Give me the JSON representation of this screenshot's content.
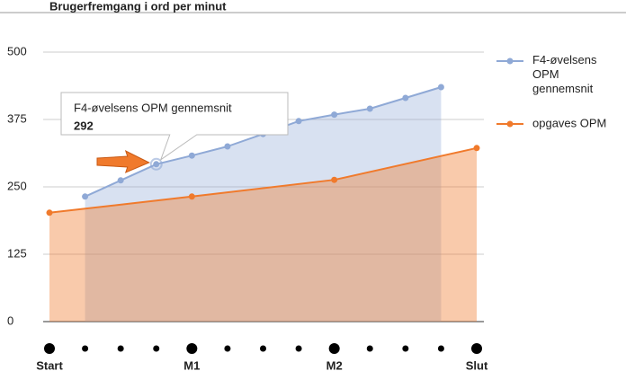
{
  "chart_data": {
    "type": "line-area",
    "title": "Brugerfremgang i ord per minut",
    "categories": [
      "Start",
      null,
      null,
      null,
      "M1",
      null,
      null,
      null,
      "M2",
      null,
      null,
      null,
      "Slut"
    ],
    "ylim": [
      0,
      500
    ],
    "yticks": [
      0,
      125,
      250,
      375,
      500
    ],
    "grid": true,
    "legend": "right",
    "series": [
      {
        "name": "F4-øvelsens OPM gennemsnit",
        "color": "#8fa9d6",
        "x": [
          1,
          2,
          3,
          4,
          5,
          6,
          7,
          8,
          9,
          10,
          11
        ],
        "values": [
          232,
          262,
          292,
          308,
          325,
          348,
          372,
          384,
          395,
          415,
          435
        ]
      },
      {
        "name": "opgaves OPM",
        "color": "#f07a2c",
        "x": [
          0,
          4,
          8,
          12
        ],
        "values": [
          202,
          232,
          263,
          322
        ]
      }
    ],
    "tooltip": {
      "series": 0,
      "point": 2
    }
  }
}
